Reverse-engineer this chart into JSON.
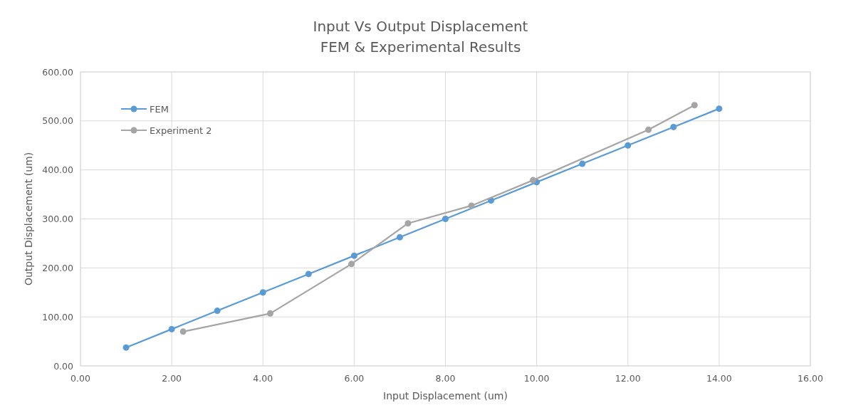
{
  "chart_data": {
    "type": "line",
    "title": "Input Vs Output Displacement",
    "subtitle": "FEM & Experimental Results",
    "xlabel": "Input Displacement (um)",
    "ylabel": "Output Displacement (um)",
    "xlim": [
      0,
      16
    ],
    "xticks": [
      {
        "value": 0,
        "label": "0.00"
      },
      {
        "value": 2,
        "label": "2.00"
      },
      {
        "value": 4,
        "label": "4.00"
      },
      {
        "value": 6,
        "label": "6.00"
      },
      {
        "value": 8,
        "label": "8.00"
      },
      {
        "value": 10,
        "label": "10.00"
      },
      {
        "value": 12,
        "label": "12.00"
      },
      {
        "value": 14,
        "label": "14.00"
      },
      {
        "value": 16,
        "label": "16.00"
      }
    ],
    "ylim": [
      0,
      600
    ],
    "yticks": [
      {
        "value": 0,
        "label": "0.00"
      },
      {
        "value": 100,
        "label": "100.00"
      },
      {
        "value": 200,
        "label": "200.00"
      },
      {
        "value": 300,
        "label": "300.00"
      },
      {
        "value": 400,
        "label": "400.00"
      },
      {
        "value": 500,
        "label": "500.00"
      },
      {
        "value": 600,
        "label": "600.00"
      }
    ],
    "grid": true,
    "legend": "top left",
    "marker": "circle",
    "series": [
      {
        "name": "FEM",
        "color": "#5b9bd5",
        "x": [
          1,
          2,
          3,
          4,
          5,
          6,
          7,
          8,
          9,
          10,
          11,
          12,
          13,
          14
        ],
        "values": [
          37.5,
          75,
          112.5,
          150,
          187.5,
          225,
          262.5,
          300,
          337.5,
          375,
          412.5,
          450,
          487.5,
          525
        ]
      },
      {
        "name": "Experiment 2",
        "color": "#a5a5a5",
        "x": [
          2.25,
          4.16,
          5.94,
          7.18,
          8.57,
          9.92,
          12.45,
          13.46
        ],
        "values": [
          70,
          107,
          208,
          291,
          327,
          379,
          482,
          532
        ]
      }
    ]
  }
}
